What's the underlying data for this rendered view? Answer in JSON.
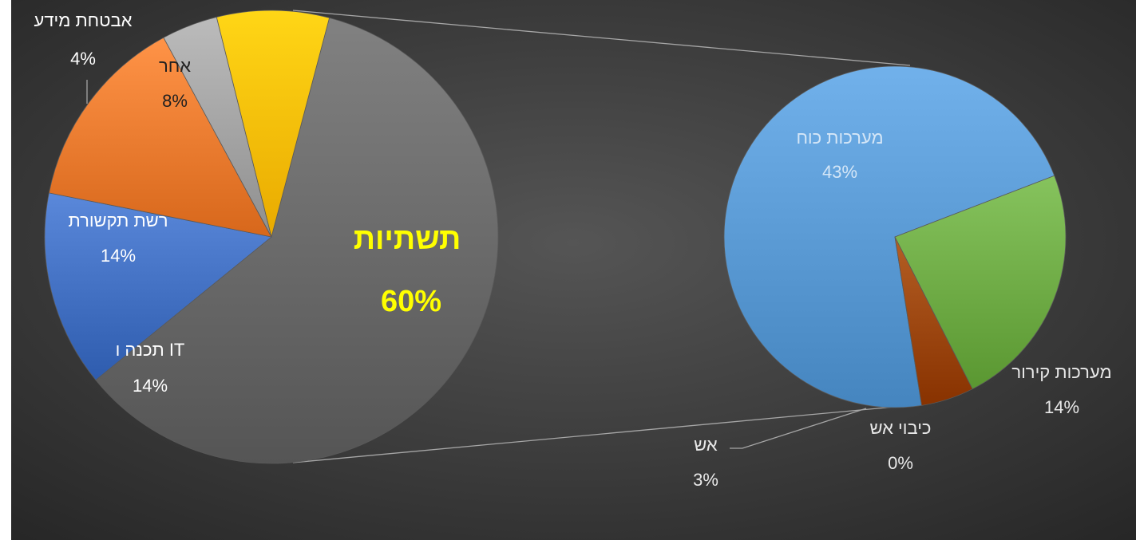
{
  "chart_data": [
    {
      "type": "pie",
      "categories": [
        "תשתיות",
        "תכנה ו IT",
        "רשת תקשורת",
        "אבטחת מידע",
        "אחר"
      ],
      "values": [
        60,
        14,
        14,
        4,
        8
      ],
      "percent_labels": [
        "60%",
        "14%",
        "14%",
        "4%",
        "8%"
      ],
      "colors": [
        "#6b6b6b",
        "#4472c4",
        "#ed7d31",
        "#a5a5a5",
        "#ffc000"
      ],
      "highlight": {
        "category": "תשתיות",
        "color": "#ffff00",
        "bold": true
      },
      "exploded_into": "secondary pie"
    },
    {
      "type": "pie",
      "categories": [
        "מערכות כוח",
        "מערכות קירור",
        "כיבוי אש",
        "אש"
      ],
      "values": [
        43,
        14,
        0,
        3
      ],
      "percent_labels": [
        "43%",
        "14%",
        "0%",
        "3%"
      ],
      "colors": [
        "#5b9bd5",
        "#70ad47",
        "#c55a11",
        "#9e480e"
      ]
    }
  ],
  "colors": {
    "background_center": "#555555",
    "background_edge": "#262626",
    "leader_lines": "#a6a6a6",
    "highlight_label": "#ffff00",
    "label_text": "#ffffff"
  }
}
